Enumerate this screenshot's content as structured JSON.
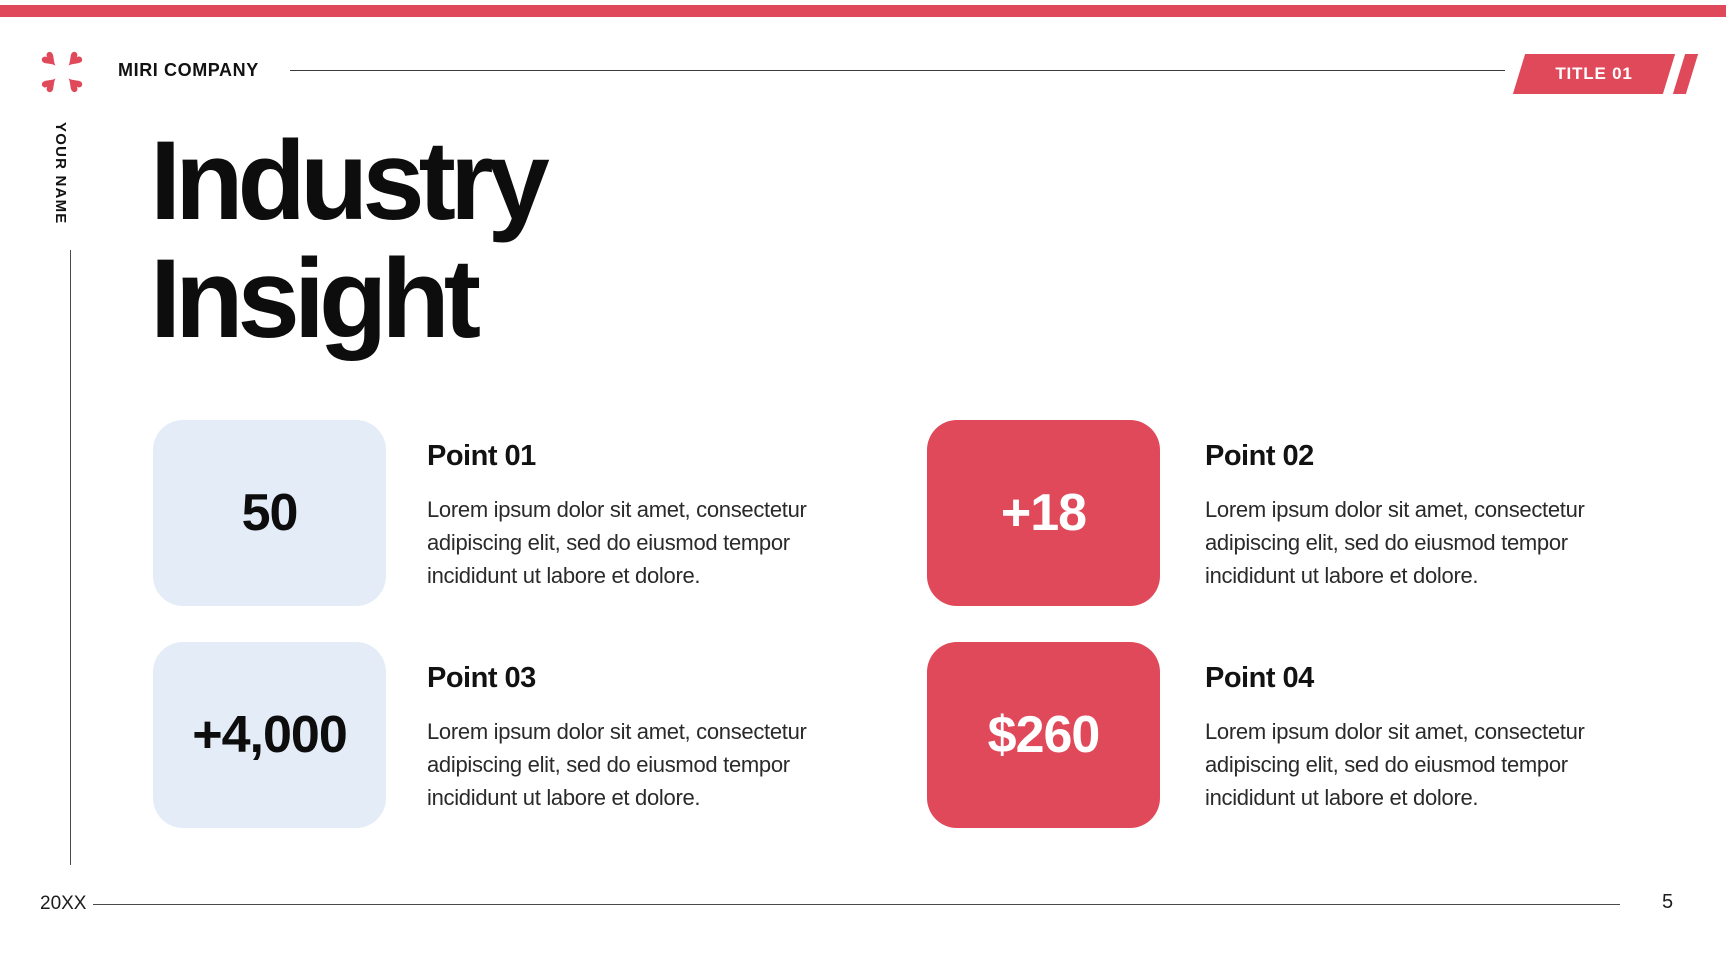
{
  "accent": {
    "red": "#E0495A",
    "light_blue": "#E4ECF8"
  },
  "header": {
    "company": "MIRI COMPANY",
    "badge": "TITLE 01"
  },
  "sidebar": {
    "author": "YOUR NAME"
  },
  "title": {
    "line1": "Industry",
    "line2": "Insight"
  },
  "points": [
    {
      "stat": "50",
      "heading": "Point 01",
      "body_lines": [
        "Lorem ipsum dolor sit amet, consectetur",
        "adipiscing elit, sed do eiusmod tempor",
        "incididunt ut labore et dolore."
      ]
    },
    {
      "stat": "+18",
      "heading": "Point 02",
      "body_lines": [
        "Lorem ipsum dolor sit amet, consectetur",
        "adipiscing elit, sed do eiusmod tempor",
        "incididunt ut labore et dolore."
      ]
    },
    {
      "stat": "+4,000",
      "heading": "Point 03",
      "body_lines": [
        "Lorem ipsum dolor sit amet, consectetur",
        "adipiscing elit, sed do eiusmod tempor",
        "incididunt ut labore et dolore."
      ]
    },
    {
      "stat": "$260",
      "heading": "Point 04",
      "body_lines": [
        "Lorem ipsum dolor sit amet, consectetur",
        "adipiscing elit, sed do eiusmod tempor",
        "incididunt ut labore et dolore."
      ]
    }
  ],
  "footer": {
    "year": "20XX",
    "page": "5"
  }
}
